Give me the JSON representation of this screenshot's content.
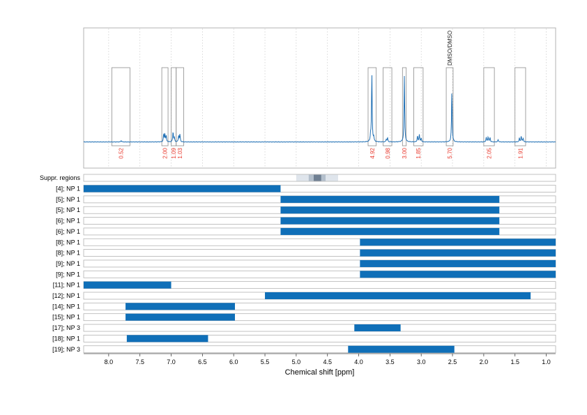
{
  "chart_data": {
    "type": "nmr-spectrum-with-range-bars",
    "xlabel": "Chemical shift [ppm]",
    "x_range": [
      8.4,
      0.85
    ],
    "x_ticks": [
      8.0,
      7.5,
      7.0,
      6.5,
      6.0,
      5.5,
      5.0,
      4.5,
      4.0,
      3.5,
      3.0,
      2.5,
      2.0,
      1.5,
      1.0
    ],
    "x_tick_labels": [
      "8.0",
      "7.5",
      "7.0",
      "6.5",
      "6.0",
      "5.5",
      "5.0",
      "4.5",
      "4.0",
      "3.5",
      "3.0",
      "2.5",
      "2.0",
      "1.5",
      "1.0"
    ],
    "grid": "dotted vertical",
    "spectrum_color": "#1f6fb4",
    "integral_color": "#e8372b",
    "integral_regions": [
      {
        "from": 7.95,
        "to": 7.66,
        "integral": "0.52"
      },
      {
        "from": 7.15,
        "to": 7.05,
        "integral": "2.00"
      },
      {
        "from": 7.0,
        "to": 6.92,
        "integral": "1.09"
      },
      {
        "from": 6.92,
        "to": 6.8,
        "integral": "1.03"
      },
      {
        "from": 3.85,
        "to": 3.72,
        "integral": "4.92"
      },
      {
        "from": 3.61,
        "to": 3.47,
        "integral": "0.98"
      },
      {
        "from": 3.3,
        "to": 3.24,
        "integral": "3.00"
      },
      {
        "from": 3.12,
        "to": 2.97,
        "integral": "1.85"
      },
      {
        "from": 2.6,
        "to": 2.49,
        "integral": "5.70",
        "label": "DMSO/DMSO"
      },
      {
        "from": 2.0,
        "to": 1.83,
        "integral": "2.05"
      },
      {
        "from": 1.5,
        "to": 1.33,
        "integral": "1.91"
      }
    ],
    "peaks": [
      {
        "ppm": 7.8,
        "height": 0.02
      },
      {
        "ppm": 7.12,
        "height": 0.11
      },
      {
        "ppm": 7.1,
        "height": 0.1
      },
      {
        "ppm": 7.08,
        "height": 0.08
      },
      {
        "ppm": 6.97,
        "height": 0.14
      },
      {
        "ppm": 6.95,
        "height": 0.06
      },
      {
        "ppm": 6.88,
        "height": 0.09
      },
      {
        "ppm": 6.86,
        "height": 0.1
      },
      {
        "ppm": 3.79,
        "height": 0.93
      },
      {
        "ppm": 3.81,
        "height": 0.08
      },
      {
        "ppm": 3.76,
        "height": 0.06
      },
      {
        "ppm": 3.54,
        "height": 0.06
      },
      {
        "ppm": 3.56,
        "height": 0.03
      },
      {
        "ppm": 3.27,
        "height": 0.88
      },
      {
        "ppm": 3.06,
        "height": 0.08
      },
      {
        "ppm": 3.03,
        "height": 0.1
      },
      {
        "ppm": 3.0,
        "height": 0.05
      },
      {
        "ppm": 2.51,
        "height": 0.7
      },
      {
        "ppm": 1.96,
        "height": 0.06
      },
      {
        "ppm": 1.93,
        "height": 0.07
      },
      {
        "ppm": 1.9,
        "height": 0.06
      },
      {
        "ppm": 1.77,
        "height": 0.03
      },
      {
        "ppm": 1.43,
        "height": 0.05
      },
      {
        "ppm": 1.4,
        "height": 0.08
      },
      {
        "ppm": 1.37,
        "height": 0.05
      }
    ],
    "suppressed_region": {
      "label": "Suppr. regions",
      "bands": [
        {
          "from": 5.0,
          "to": 4.33,
          "color": "#dfe5ec"
        },
        {
          "from": 4.8,
          "to": 4.53,
          "color": "#b3bfcc"
        },
        {
          "from": 4.72,
          "to": 4.6,
          "color": "#6f7f92"
        }
      ]
    },
    "rows": [
      {
        "label": "[4]; NP 1",
        "from": 8.4,
        "to": 5.25
      },
      {
        "label": "[5]; NP 1",
        "from": 5.25,
        "to": 1.75
      },
      {
        "label": "[5]; NP 1",
        "from": 5.25,
        "to": 1.75
      },
      {
        "label": "[6]; NP 1",
        "from": 5.25,
        "to": 1.75
      },
      {
        "label": "[6]; NP 1",
        "from": 5.25,
        "to": 1.75
      },
      {
        "label": "[8]; NP 1",
        "from": 3.98,
        "to": 0.85
      },
      {
        "label": "[8]; NP 1",
        "from": 3.98,
        "to": 0.85
      },
      {
        "label": "[9]; NP 1",
        "from": 3.98,
        "to": 0.85
      },
      {
        "label": "[9]; NP 1",
        "from": 3.98,
        "to": 0.85
      },
      {
        "label": "[11]; NP 1",
        "from": 8.4,
        "to": 7.0
      },
      {
        "label": "[12]; NP 1",
        "from": 5.5,
        "to": 1.25
      },
      {
        "label": "[14]; NP 1",
        "from": 7.73,
        "to": 5.98
      },
      {
        "label": "[15]; NP 1",
        "from": 7.73,
        "to": 5.98
      },
      {
        "label": "[17]; NP 3",
        "from": 4.07,
        "to": 3.33
      },
      {
        "label": "[18]; NP 1",
        "from": 7.71,
        "to": 6.41
      },
      {
        "label": "[19]; NP 3",
        "from": 4.17,
        "to": 2.47
      }
    ],
    "bar_color": "#0f6fb8"
  }
}
